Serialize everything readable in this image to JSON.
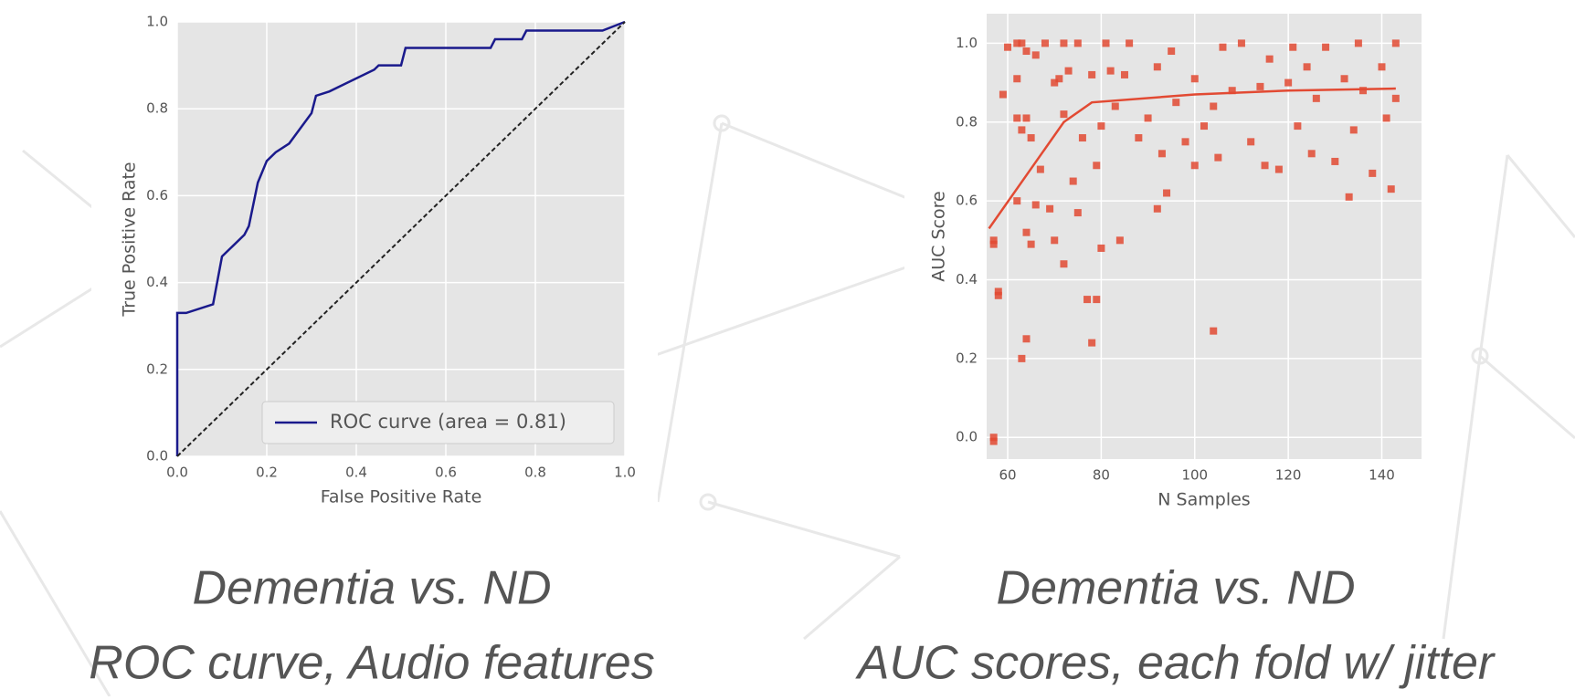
{
  "chart_data": [
    {
      "type": "line",
      "xlabel": "False Positive Rate",
      "ylabel": "True Positive Rate",
      "caption": [
        "Dementia vs. ND",
        "ROC curve, Audio features"
      ],
      "xlim": [
        0,
        1
      ],
      "ylim": [
        0,
        1
      ],
      "xticks": [
        {
          "value": 0,
          "label": "0.0"
        },
        0.2,
        0.4,
        0.6,
        0.8,
        {
          "value": 1,
          "label": "1.0"
        }
      ],
      "yticks": [
        {
          "value": 0,
          "label": "0.0"
        },
        0.2,
        0.4,
        0.6,
        0.8,
        {
          "value": 1,
          "label": "1.0"
        }
      ],
      "grid": true,
      "legend": "lower right",
      "series": [
        {
          "name": "ROC curve (area = 0.81)",
          "color": "#1a1a8c",
          "x": [
            0,
            0,
            0.02,
            0.08,
            0.1,
            0.12,
            0.15,
            0.16,
            0.18,
            0.2,
            0.22,
            0.25,
            0.3,
            0.31,
            0.34,
            0.4,
            0.44,
            0.45,
            0.5,
            0.51,
            0.7,
            0.71,
            0.77,
            0.78,
            0.95,
            1
          ],
          "values": [
            0,
            0.33,
            0.33,
            0.35,
            0.46,
            0.48,
            0.51,
            0.53,
            0.63,
            0.68,
            0.7,
            0.72,
            0.79,
            0.83,
            0.84,
            0.87,
            0.89,
            0.9,
            0.9,
            0.94,
            0.94,
            0.96,
            0.96,
            0.98,
            0.98,
            1
          ]
        },
        {
          "color": "#222222",
          "dash": true,
          "x": [
            0,
            1
          ],
          "values": [
            0,
            1
          ]
        }
      ]
    },
    {
      "type": "scatter",
      "xlabel": "N Samples",
      "ylabel": "AUC Score",
      "caption": [
        "Dementia vs. ND",
        "AUC scores, each fold w/ jitter"
      ],
      "xlim": [
        55.5,
        148.5
      ],
      "ylim": [
        -0.055,
        1.075
      ],
      "xticks": [
        60,
        80,
        100,
        120,
        140
      ],
      "yticks": [
        {
          "value": 0,
          "label": "0.0"
        },
        0.2,
        0.4,
        0.6,
        0.8,
        {
          "value": 1,
          "label": "1.0"
        }
      ],
      "grid": true,
      "series": [
        {
          "color": "#e24a33",
          "x": [
            57,
            57,
            57,
            57,
            58,
            58,
            59,
            60,
            62,
            62,
            62,
            62,
            63,
            63,
            63,
            64,
            64,
            64,
            64,
            65,
            65,
            66,
            66,
            67,
            68,
            69,
            70,
            70,
            71,
            72,
            72,
            72,
            73,
            74,
            75,
            75,
            76,
            77,
            78,
            78,
            79,
            79,
            80,
            80,
            81,
            82,
            83,
            84,
            85,
            86,
            88,
            90,
            92,
            92,
            93,
            94,
            95,
            96,
            98,
            100,
            100,
            102,
            104,
            104,
            105,
            106,
            108,
            110,
            112,
            114,
            115,
            116,
            118,
            120,
            121,
            122,
            124,
            125,
            126,
            128,
            130,
            132,
            133,
            134,
            135,
            136,
            138,
            140,
            141,
            142,
            143,
            143
          ],
          "values": [
            0.5,
            0.49,
            0,
            -0.01,
            0.36,
            0.37,
            0.87,
            0.99,
            1,
            0.91,
            0.81,
            0.6,
            0.2,
            0.78,
            1,
            0.25,
            0.81,
            0.52,
            0.98,
            0.76,
            0.49,
            0.59,
            0.97,
            0.68,
            1,
            0.58,
            0.9,
            0.5,
            0.91,
            0.44,
            0.82,
            1,
            0.93,
            0.65,
            1,
            0.57,
            0.76,
            0.35,
            0.24,
            0.92,
            0.35,
            0.69,
            0.48,
            0.79,
            1,
            0.93,
            0.84,
            0.5,
            0.92,
            1,
            0.76,
            0.81,
            0.94,
            0.58,
            0.72,
            0.62,
            0.98,
            0.85,
            0.75,
            0.91,
            0.69,
            0.79,
            0.27,
            0.84,
            0.71,
            0.99,
            0.88,
            1,
            0.75,
            0.89,
            0.69,
            0.96,
            0.68,
            0.9,
            0.99,
            0.79,
            0.94,
            0.72,
            0.86,
            0.99,
            0.7,
            0.91,
            0.61,
            0.78,
            1,
            0.88,
            0.67,
            0.94,
            0.81,
            0.63,
            1,
            0.86
          ]
        },
        {
          "color": "#e24a33",
          "line": true,
          "x": [
            56,
            72,
            78,
            100,
            120,
            143
          ],
          "values": [
            0.53,
            0.8,
            0.85,
            0.87,
            0.88,
            0.885
          ]
        }
      ]
    }
  ]
}
